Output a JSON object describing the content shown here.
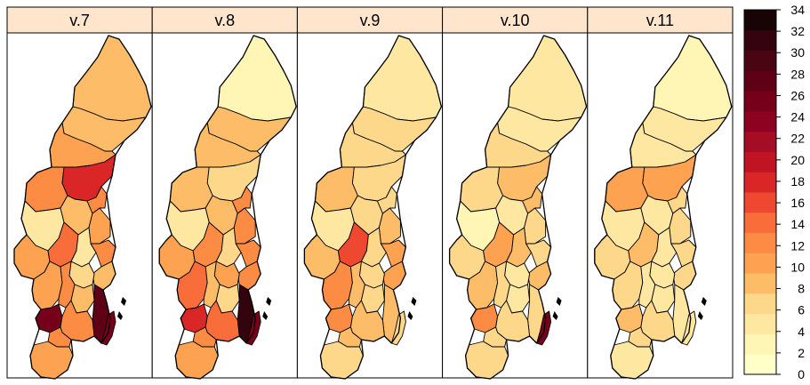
{
  "panels": [
    {
      "label": "v.7",
      "values": [
        8,
        8,
        10,
        12,
        17,
        4,
        8,
        10,
        12,
        10,
        14,
        4,
        12,
        8,
        6,
        10,
        12,
        8,
        27,
        26,
        12,
        12,
        10,
        26
      ]
    },
    {
      "label": "v.8",
      "values": [
        2,
        8,
        8,
        8,
        6,
        4,
        8,
        12,
        12,
        10,
        12,
        6,
        12,
        12,
        10,
        14,
        8,
        6,
        32,
        18,
        14,
        12,
        10,
        26
      ]
    },
    {
      "label": "v.9",
      "values": [
        4,
        6,
        6,
        8,
        6,
        4,
        6,
        8,
        6,
        8,
        16,
        6,
        10,
        10,
        6,
        12,
        8,
        6,
        8,
        12,
        8,
        8,
        6,
        6
      ]
    },
    {
      "label": "v.10",
      "values": [
        4,
        4,
        6,
        6,
        8,
        2,
        4,
        6,
        8,
        6,
        10,
        8,
        6,
        8,
        4,
        8,
        6,
        4,
        6,
        12,
        6,
        6,
        6,
        26
      ]
    },
    {
      "label": "v.11",
      "values": [
        2,
        4,
        4,
        10,
        10,
        4,
        4,
        6,
        6,
        6,
        8,
        4,
        6,
        6,
        4,
        6,
        4,
        4,
        4,
        8,
        6,
        6,
        4,
        4
      ]
    }
  ],
  "legend": {
    "ticks": [
      "0",
      "2",
      "4",
      "6",
      "8",
      "10",
      "12",
      "14",
      "16",
      "18",
      "20",
      "22",
      "24",
      "26",
      "28",
      "30",
      "32",
      "34"
    ],
    "colors": [
      "#FFFFC8",
      "#FFF6B5",
      "#FEE8A1",
      "#FDD78A",
      "#FDBD68",
      "#FCA250",
      "#FC8B44",
      "#F86D3A",
      "#EE4830",
      "#DA2627",
      "#C11422",
      "#A40D24",
      "#8C0220",
      "#760019",
      "#5E0016",
      "#4A0512",
      "#34040E",
      "#180404"
    ]
  },
  "colors": {
    "strip": "#FFE5CC",
    "border": "#000000",
    "background": "#FFFFFF"
  }
}
